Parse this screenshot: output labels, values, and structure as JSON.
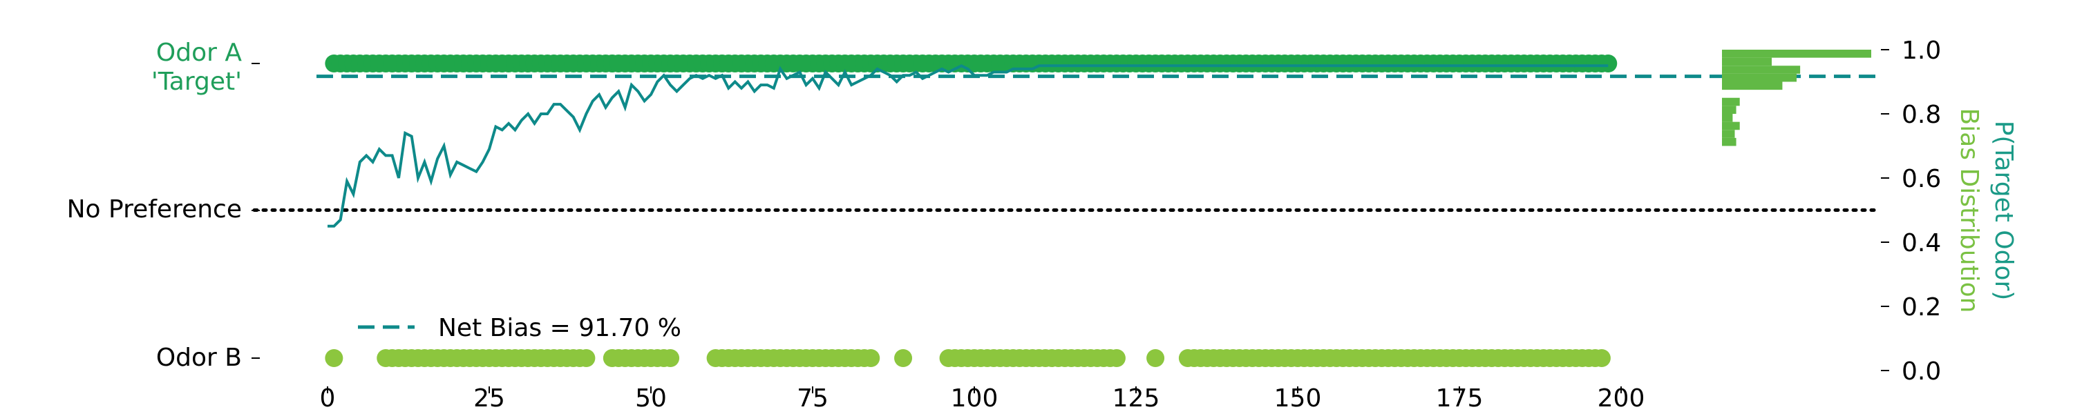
{
  "colors": {
    "choice_a": "#1fa64a",
    "choice_b": "#8cc63e",
    "probability_line": "#0e8a8a",
    "net_bias": "#0e8a8a",
    "no_preference": "#000000",
    "left_label_a": "#1f9e5a",
    "right_label_top": "#1b9a87",
    "right_label_bottom": "#7ac143",
    "histogram": "#61b945"
  },
  "chart_data": {
    "type": "line",
    "x_range": [
      0,
      200
    ],
    "y_range": [
      0,
      1
    ],
    "x_ticks": [
      "0",
      "25",
      "50",
      "75",
      "100",
      "125",
      "150",
      "175",
      "200"
    ],
    "right_ticks": [
      "0.0",
      "0.2",
      "0.4",
      "0.6",
      "0.8",
      "1.0"
    ],
    "left_ticks": {
      "odor_a_line1": "Odor A",
      "odor_a_line2": "'Target'",
      "no_preference": "No Preference",
      "odor_b": "Odor B"
    },
    "right_axis_label_top": "P(Target Odor)",
    "right_axis_label_bottom": "Bias Distribution",
    "legend": {
      "label": "Net Bias = 91.70 %",
      "placement": "lower-left"
    },
    "net_bias_value": 0.917,
    "no_preference_value": 0.5,
    "choices_odor_a": [
      1,
      2,
      3,
      4,
      5,
      6,
      7,
      8,
      9,
      10,
      11,
      12,
      13,
      14,
      15,
      16,
      17,
      18,
      19,
      20,
      21,
      22,
      23,
      24,
      25,
      26,
      27,
      28,
      29,
      30,
      31,
      32,
      33,
      34,
      35,
      36,
      37,
      38,
      39,
      40,
      41,
      42,
      43,
      44,
      45,
      46,
      47,
      48,
      49,
      50,
      51,
      52,
      53,
      54,
      55,
      56,
      57,
      58,
      59,
      60,
      61,
      62,
      63,
      64,
      65,
      66,
      67,
      68,
      69,
      70,
      71,
      72,
      73,
      74,
      75,
      76,
      77,
      78,
      79,
      80,
      81,
      82,
      83,
      84,
      85,
      86,
      87,
      88,
      89,
      90,
      91,
      92,
      93,
      94,
      95,
      96,
      97,
      98,
      99,
      100,
      101,
      102,
      103,
      104,
      105,
      106,
      107,
      108,
      109,
      110,
      111,
      112,
      113,
      114,
      115,
      116,
      117,
      118,
      119,
      120,
      121,
      122,
      123,
      124,
      125,
      126,
      127,
      128,
      129,
      130,
      131,
      132,
      133,
      134,
      135,
      136,
      137,
      138,
      139,
      140,
      141,
      142,
      143,
      144,
      145,
      146,
      147,
      148,
      149,
      150,
      151,
      152,
      153,
      154,
      155,
      156,
      157,
      158,
      159,
      160,
      161,
      162,
      163,
      164,
      165,
      166,
      167,
      168,
      169,
      170,
      171,
      172,
      173,
      174,
      175,
      176,
      177,
      178,
      179,
      180,
      181,
      182,
      183,
      184,
      185,
      186,
      187,
      188,
      189,
      190,
      191,
      192,
      193,
      194,
      195,
      196,
      197,
      198
    ],
    "choices_odor_b": [
      1,
      9,
      10,
      11,
      12,
      13,
      14,
      15,
      16,
      17,
      18,
      19,
      20,
      21,
      22,
      23,
      24,
      25,
      26,
      27,
      28,
      29,
      30,
      31,
      32,
      33,
      34,
      35,
      36,
      37,
      38,
      39,
      40,
      44,
      45,
      46,
      47,
      48,
      49,
      50,
      51,
      52,
      53,
      60,
      61,
      62,
      63,
      64,
      65,
      66,
      67,
      68,
      69,
      70,
      71,
      72,
      73,
      74,
      75,
      76,
      77,
      78,
      79,
      80,
      81,
      82,
      83,
      84,
      89,
      96,
      97,
      98,
      99,
      100,
      101,
      102,
      103,
      104,
      105,
      106,
      107,
      108,
      109,
      110,
      111,
      112,
      113,
      114,
      115,
      116,
      117,
      118,
      119,
      120,
      121,
      122,
      128,
      133,
      134,
      135,
      136,
      137,
      138,
      139,
      140,
      141,
      142,
      143,
      144,
      145,
      146,
      147,
      148,
      149,
      150,
      151,
      152,
      153,
      154,
      155,
      156,
      157,
      158,
      159,
      160,
      161,
      162,
      163,
      164,
      165,
      166,
      167,
      168,
      169,
      170,
      171,
      172,
      173,
      174,
      175,
      176,
      177,
      178,
      179,
      180,
      181,
      182,
      183,
      184,
      185,
      186,
      187,
      188,
      189,
      190,
      191,
      192,
      193,
      194,
      195,
      196,
      197
    ],
    "probability_series": {
      "x": [
        0,
        1,
        2,
        3,
        4,
        5,
        6,
        7,
        8,
        9,
        10,
        11,
        12,
        13,
        14,
        15,
        16,
        17,
        18,
        19,
        20,
        21,
        22,
        23,
        24,
        25,
        26,
        27,
        28,
        29,
        30,
        31,
        32,
        33,
        34,
        35,
        36,
        37,
        38,
        39,
        40,
        41,
        42,
        43,
        44,
        45,
        46,
        47,
        48,
        49,
        50,
        51,
        52,
        53,
        54,
        55,
        56,
        57,
        58,
        59,
        60,
        61,
        62,
        63,
        64,
        65,
        66,
        67,
        68,
        69,
        70,
        71,
        72,
        73,
        74,
        75,
        76,
        77,
        78,
        79,
        80,
        81,
        82,
        83,
        84,
        85,
        86,
        87,
        88,
        89,
        90,
        91,
        92,
        93,
        94,
        95,
        96,
        97,
        98,
        99,
        100,
        101,
        102,
        103,
        104,
        105,
        106,
        107,
        108,
        109,
        110,
        111,
        112,
        113,
        114,
        115,
        116,
        117,
        118,
        119,
        120,
        121,
        122,
        123,
        124,
        125,
        126,
        127,
        128,
        129,
        130,
        131,
        132,
        133,
        134,
        135,
        136,
        137,
        138,
        139,
        140,
        141,
        142,
        143,
        144,
        145,
        146,
        147,
        148,
        149,
        150,
        151,
        152,
        153,
        154,
        155,
        156,
        157,
        158,
        159,
        160,
        161,
        162,
        163,
        164,
        165,
        166,
        167,
        168,
        169,
        170,
        171,
        172,
        173,
        174,
        175,
        176,
        177,
        178,
        179,
        180,
        181,
        182,
        183,
        184,
        185,
        186,
        187,
        188,
        189,
        190,
        191,
        192,
        193,
        194,
        195,
        196,
        197,
        198
      ],
      "y": [
        0.45,
        0.45,
        0.47,
        0.59,
        0.55,
        0.65,
        0.67,
        0.65,
        0.69,
        0.67,
        0.67,
        0.6,
        0.74,
        0.73,
        0.6,
        0.65,
        0.59,
        0.66,
        0.7,
        0.61,
        0.65,
        0.64,
        0.63,
        0.62,
        0.65,
        0.69,
        0.76,
        0.75,
        0.77,
        0.75,
        0.78,
        0.8,
        0.77,
        0.8,
        0.8,
        0.83,
        0.83,
        0.81,
        0.79,
        0.75,
        0.8,
        0.84,
        0.86,
        0.82,
        0.85,
        0.87,
        0.82,
        0.89,
        0.87,
        0.84,
        0.86,
        0.9,
        0.92,
        0.89,
        0.87,
        0.89,
        0.91,
        0.92,
        0.91,
        0.92,
        0.91,
        0.92,
        0.88,
        0.9,
        0.88,
        0.9,
        0.87,
        0.89,
        0.89,
        0.88,
        0.94,
        0.91,
        0.92,
        0.93,
        0.89,
        0.91,
        0.88,
        0.93,
        0.91,
        0.89,
        0.93,
        0.89,
        0.9,
        0.91,
        0.92,
        0.94,
        0.93,
        0.92,
        0.9,
        0.92,
        0.92,
        0.93,
        0.91,
        0.92,
        0.93,
        0.94,
        0.93,
        0.94,
        0.95,
        0.94,
        0.92,
        0.92,
        0.92,
        0.93,
        0.93,
        0.93,
        0.94,
        0.94,
        0.94,
        0.94,
        0.95,
        0.95,
        0.95,
        0.95,
        0.95,
        0.95,
        0.95,
        0.95,
        0.95,
        0.95,
        0.95,
        0.95,
        0.95,
        0.95,
        0.95,
        0.95,
        0.95,
        0.95,
        0.95,
        0.95,
        0.95,
        0.95,
        0.95,
        0.95,
        0.95,
        0.95,
        0.95,
        0.95,
        0.95,
        0.95,
        0.95,
        0.95,
        0.95,
        0.95,
        0.95,
        0.95,
        0.95,
        0.95,
        0.95,
        0.95,
        0.95,
        0.95,
        0.95,
        0.95,
        0.95,
        0.95,
        0.95,
        0.95,
        0.95,
        0.95,
        0.95,
        0.95,
        0.95,
        0.95,
        0.95,
        0.95,
        0.95,
        0.95,
        0.95,
        0.95,
        0.95,
        0.95,
        0.95,
        0.95,
        0.95,
        0.95,
        0.95,
        0.95,
        0.95,
        0.95,
        0.95,
        0.95,
        0.95,
        0.95,
        0.95,
        0.95,
        0.95,
        0.95,
        0.95,
        0.95,
        0.95,
        0.95,
        0.95,
        0.95,
        0.95,
        0.95,
        0.95,
        0.95,
        0.95
      ]
    },
    "bias_histogram": [
      {
        "bin": [
          0.975,
          1.0
        ],
        "frequency": 210
      },
      {
        "bin": [
          0.95,
          0.975
        ],
        "frequency": 70
      },
      {
        "bin": [
          0.925,
          0.95
        ],
        "frequency": 110
      },
      {
        "bin": [
          0.9,
          0.925
        ],
        "frequency": 105
      },
      {
        "bin": [
          0.875,
          0.9
        ],
        "frequency": 85
      },
      {
        "bin": [
          0.825,
          0.85
        ],
        "frequency": 25
      },
      {
        "bin": [
          0.8,
          0.825
        ],
        "frequency": 20
      },
      {
        "bin": [
          0.775,
          0.8
        ],
        "frequency": 15
      },
      {
        "bin": [
          0.75,
          0.775
        ],
        "frequency": 25
      },
      {
        "bin": [
          0.725,
          0.75
        ],
        "frequency": 18
      },
      {
        "bin": [
          0.7,
          0.725
        ],
        "frequency": 20
      }
    ]
  }
}
